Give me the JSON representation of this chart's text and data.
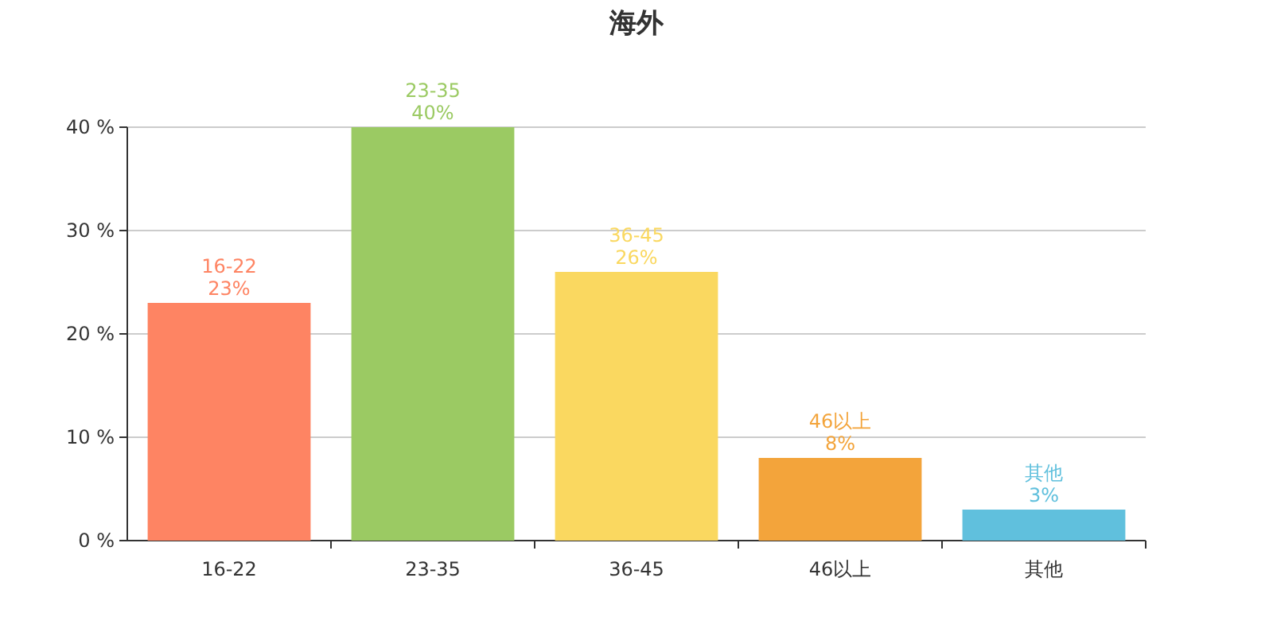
{
  "chart_data": {
    "type": "bar",
    "title": "海外",
    "categories": [
      "16-22",
      "23-35",
      "36-45",
      "46以上",
      "其他"
    ],
    "values": [
      23,
      40,
      26,
      8,
      3
    ],
    "colors": [
      "#fe8463",
      "#9bca63",
      "#fad860",
      "#f3a43b",
      "#60c0dd"
    ],
    "value_labels": [
      "23%",
      "40%",
      "26%",
      "8%",
      "3%"
    ],
    "ylim": [
      0,
      40
    ],
    "yticks": [
      {
        "value": 0,
        "label": "0 %"
      },
      {
        "value": 10,
        "label": "10 %"
      },
      {
        "value": 20,
        "label": "20 %"
      },
      {
        "value": 30,
        "label": "30 %"
      },
      {
        "value": 40,
        "label": "40 %"
      }
    ],
    "grid": "y"
  }
}
